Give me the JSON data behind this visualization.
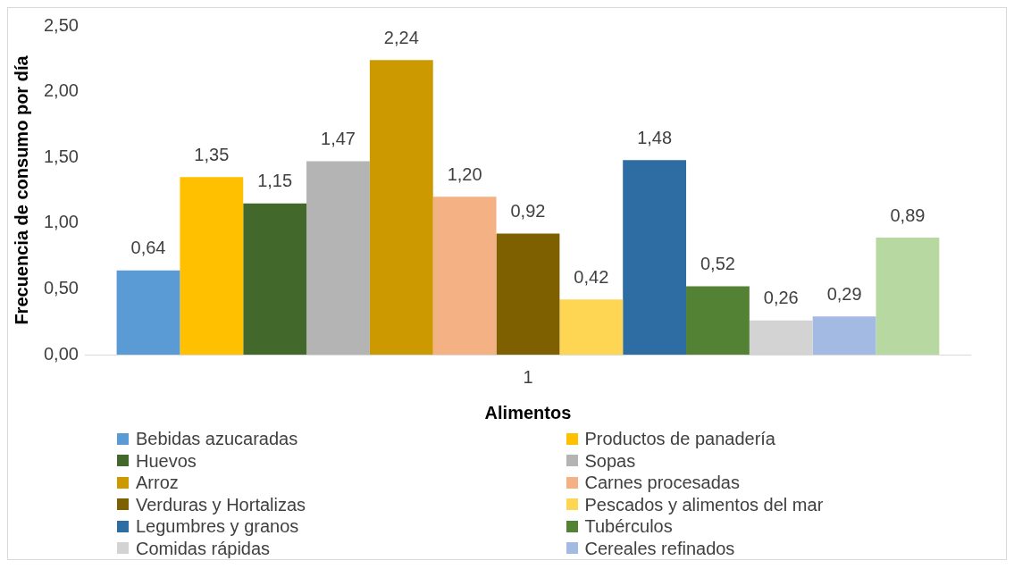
{
  "chart_data": {
    "type": "bar",
    "xlabel": "Alimentos",
    "ylabel": "Frecuencia de consumo por día",
    "categories": [
      "1"
    ],
    "series": [
      {
        "name": "Bebidas azucaradas",
        "color": "#5b9bd5",
        "values": [
          0.64
        ],
        "value_labels": [
          "0,64"
        ]
      },
      {
        "name": "Productos de panadería",
        "color": "#ffc000",
        "values": [
          1.35
        ],
        "value_labels": [
          "1,35"
        ]
      },
      {
        "name": "Huevos",
        "color": "#43682b",
        "values": [
          1.15
        ],
        "value_labels": [
          "1,15"
        ]
      },
      {
        "name": "Sopas",
        "color": "#b4b4b4",
        "values": [
          1.47
        ],
        "value_labels": [
          "1,47"
        ]
      },
      {
        "name": "Arroz",
        "color": "#cc9900",
        "values": [
          2.24
        ],
        "value_labels": [
          "2,24"
        ]
      },
      {
        "name": "Carnes procesadas",
        "color": "#f4b183",
        "values": [
          1.2
        ],
        "value_labels": [
          "1,20"
        ]
      },
      {
        "name": "Verduras y Hortalizas",
        "color": "#7f6000",
        "values": [
          0.92
        ],
        "value_labels": [
          "0,92"
        ]
      },
      {
        "name": "Pescados y alimentos del mar",
        "color": "#ffd653",
        "values": [
          0.42
        ],
        "value_labels": [
          "0,42"
        ]
      },
      {
        "name": "Legumbres y granos",
        "color": "#2e6ca4",
        "values": [
          1.48
        ],
        "value_labels": [
          "1,48"
        ]
      },
      {
        "name": "Tubérculos",
        "color": "#548235",
        "values": [
          0.52
        ],
        "value_labels": [
          "0,52"
        ]
      },
      {
        "name": "Comidas rápidas",
        "color": "#d3d3d3",
        "values": [
          0.26
        ],
        "value_labels": [
          "0,26"
        ]
      },
      {
        "name": "Cereales refinados",
        "color": "#a3bbe3",
        "values": [
          0.29
        ],
        "value_labels": [
          "0,29"
        ]
      },
      {
        "color": "#b7d9a1",
        "values": [
          0.89
        ],
        "value_labels": [
          "0,89"
        ]
      }
    ],
    "ylim": [
      0,
      2.5
    ],
    "yticks": [
      {
        "value": 0,
        "label": "0,00"
      },
      {
        "value": 0.5,
        "label": "0,50"
      },
      {
        "value": 1,
        "label": "1,00"
      },
      {
        "value": 1.5,
        "label": "1,50"
      },
      {
        "value": 2,
        "label": "2,00"
      },
      {
        "value": 2.5,
        "label": "2,50"
      }
    ],
    "grid": false,
    "legend": "bottom"
  }
}
